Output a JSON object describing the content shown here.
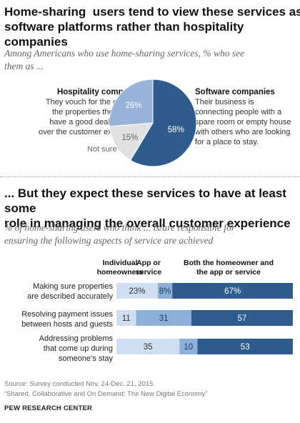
{
  "section1": {
    "title_line1": "Home-sharing  users tend to view these services as",
    "title_line2": "software platforms rather than hospitality companies",
    "subtitle_line1": "Among Americans who use home-sharing services, % who see",
    "subtitle_line2": "them as ...",
    "hospitality": {
      "label": "Hospitality companies",
      "desc_line1": "They vouch for the quality of",
      "desc_line2": "the properties they list and",
      "desc_line3": "have a good deal of control",
      "desc_line4": "over the customer experience."
    },
    "software": {
      "label": "Software companies",
      "desc_line1": "Their business is",
      "desc_line2": "connecting people with a",
      "desc_line3": "spare room or empty house",
      "desc_line4": "with others who are looking",
      "desc_line5": "for a place to stay."
    },
    "not_sure_label": "Not sure"
  },
  "section2": {
    "title_line1": "... But they expect these services to have at least some",
    "title_line2": "role in managing the overall customer experience",
    "subtitle_line1": "% of home-sharing users who think ... is/are responsible for",
    "subtitle_line2": "ensuring the following aspects of service are achieved",
    "col1_line1": "Individual",
    "col1_line2": "homeowners",
    "col2_line1": "App or",
    "col2_line2": "service",
    "col3_line1": "Both the homeowner and",
    "col3_line2": "the app or service",
    "row1_line1": "Making sure properties",
    "row1_line2": "are described accurately",
    "row2_line1": "Resolving payment issues",
    "row2_line2": "between hosts and guests",
    "row3_line1": "Addressing problems",
    "row3_line2": "that come up during",
    "row3_line3": "someone's stay"
  },
  "footer": {
    "source": "Source: Survey conducted Nov. 24-Dec. 21, 2015.",
    "report": "“Shared, Collaborative and On Demand: The New Digital Economy”",
    "brand": "PEW RESEARCH CENTER"
  },
  "chart_data": [
    {
      "type": "pie",
      "labels": [
        "Software companies",
        "Not sure",
        "Hospitality companies"
      ],
      "values": [
        58,
        15,
        26
      ],
      "value_labels": [
        "58%",
        "15%",
        "26%"
      ],
      "colors": [
        "#2e5c8c",
        "#e1e1e1",
        "#97b3d7"
      ]
    },
    {
      "type": "bar",
      "orientation": "horizontal",
      "stacked": true,
      "categories": [
        "Making sure properties are described accurately",
        "Resolving payment issues between hosts and guests",
        "Addressing problems that come up during someone's stay"
      ],
      "series": [
        {
          "name": "Individual homeowners",
          "values": [
            23,
            11,
            35
          ],
          "labels": [
            "23%",
            "11",
            "35"
          ],
          "color": "#cfdff1"
        },
        {
          "name": "App or service",
          "values": [
            8,
            31,
            10
          ],
          "labels": [
            "8%",
            "31",
            "10"
          ],
          "color": "#8cb0d9"
        },
        {
          "name": "Both the homeowner and the app or service",
          "values": [
            67,
            57,
            53
          ],
          "labels": [
            "67%",
            "57",
            "53"
          ],
          "color": "#2e5c8c"
        }
      ]
    }
  ]
}
